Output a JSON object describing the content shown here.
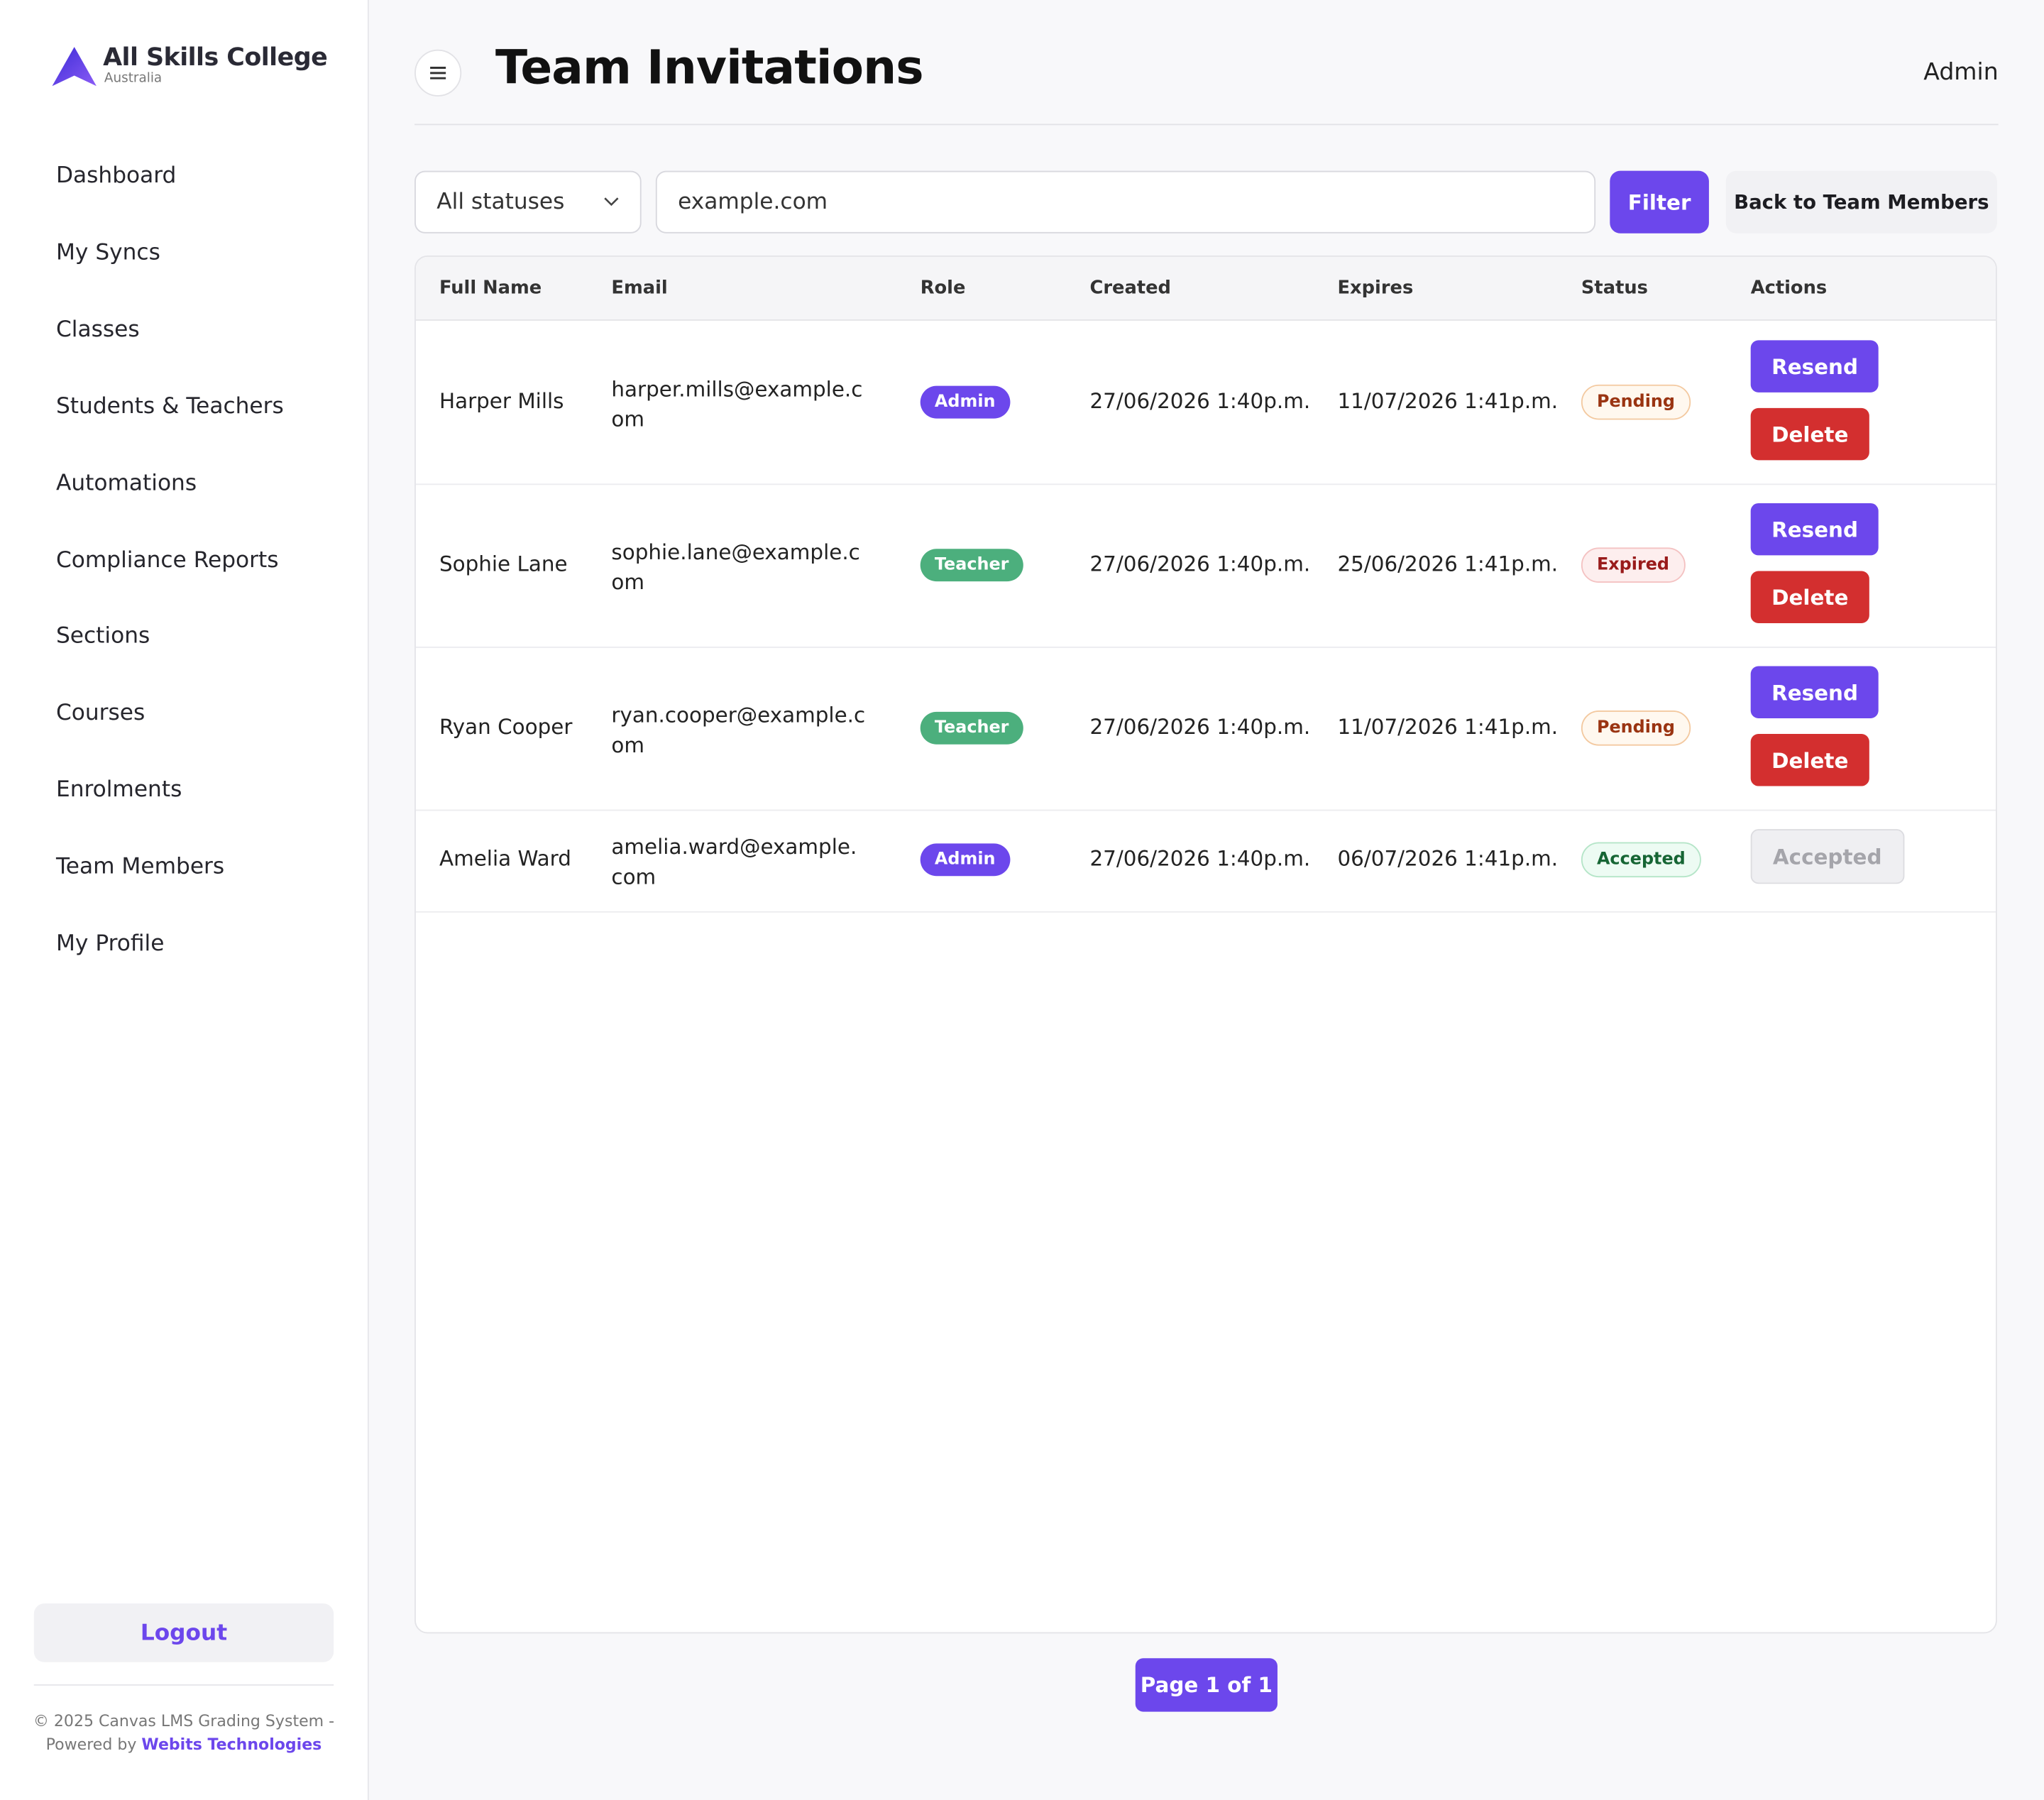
{
  "sidebar": {
    "brand": "All Skills College",
    "brand_sub": "Australia",
    "nav": [
      "Dashboard",
      "My Syncs",
      "Classes",
      "Students & Teachers",
      "Automations",
      "Compliance Reports",
      "Sections",
      "Courses",
      "Enrolments",
      "Team Members",
      "My Profile"
    ],
    "logout": "Logout",
    "footer_text": "© 2025 Canvas LMS Grading System - Powered by",
    "footer_link": "Webits Technologies"
  },
  "header": {
    "title": "Team Invitations",
    "user": "Admin"
  },
  "filters": {
    "status": "All statuses",
    "search": "example.com",
    "filter_button": "Filter",
    "back_button": "Back to Team Members"
  },
  "table": {
    "columns": [
      "Full Name",
      "Email",
      "Role",
      "Created",
      "Expires",
      "Status",
      "Actions"
    ],
    "rows": [
      {
        "name": "Harper Mills",
        "email": "harper.mills@example.com",
        "role": "Admin",
        "created": "27/06/2026 1:40p.m.",
        "expires": "11/07/2026 1:41p.m.",
        "status": "Pending",
        "actions": [
          "Resend",
          "Delete"
        ]
      },
      {
        "name": "Sophie Lane",
        "email": "sophie.lane@example.com",
        "role": "Teacher",
        "created": "27/06/2026 1:40p.m.",
        "expires": "25/06/2026 1:41p.m.",
        "status": "Expired",
        "actions": [
          "Resend",
          "Delete"
        ]
      },
      {
        "name": "Ryan Cooper",
        "email": "ryan.cooper@example.com",
        "role": "Teacher",
        "created": "27/06/2026 1:40p.m.",
        "expires": "11/07/2026 1:41p.m.",
        "status": "Pending",
        "actions": [
          "Resend",
          "Delete"
        ]
      },
      {
        "name": "Amelia Ward",
        "email": "amelia.ward@example.com",
        "role": "Admin",
        "created": "27/06/2026 1:40p.m.",
        "expires": "06/07/2026 1:41p.m.",
        "status": "Accepted",
        "actions": [
          "Accepted"
        ]
      }
    ]
  },
  "pagination": "Page 1 of 1"
}
